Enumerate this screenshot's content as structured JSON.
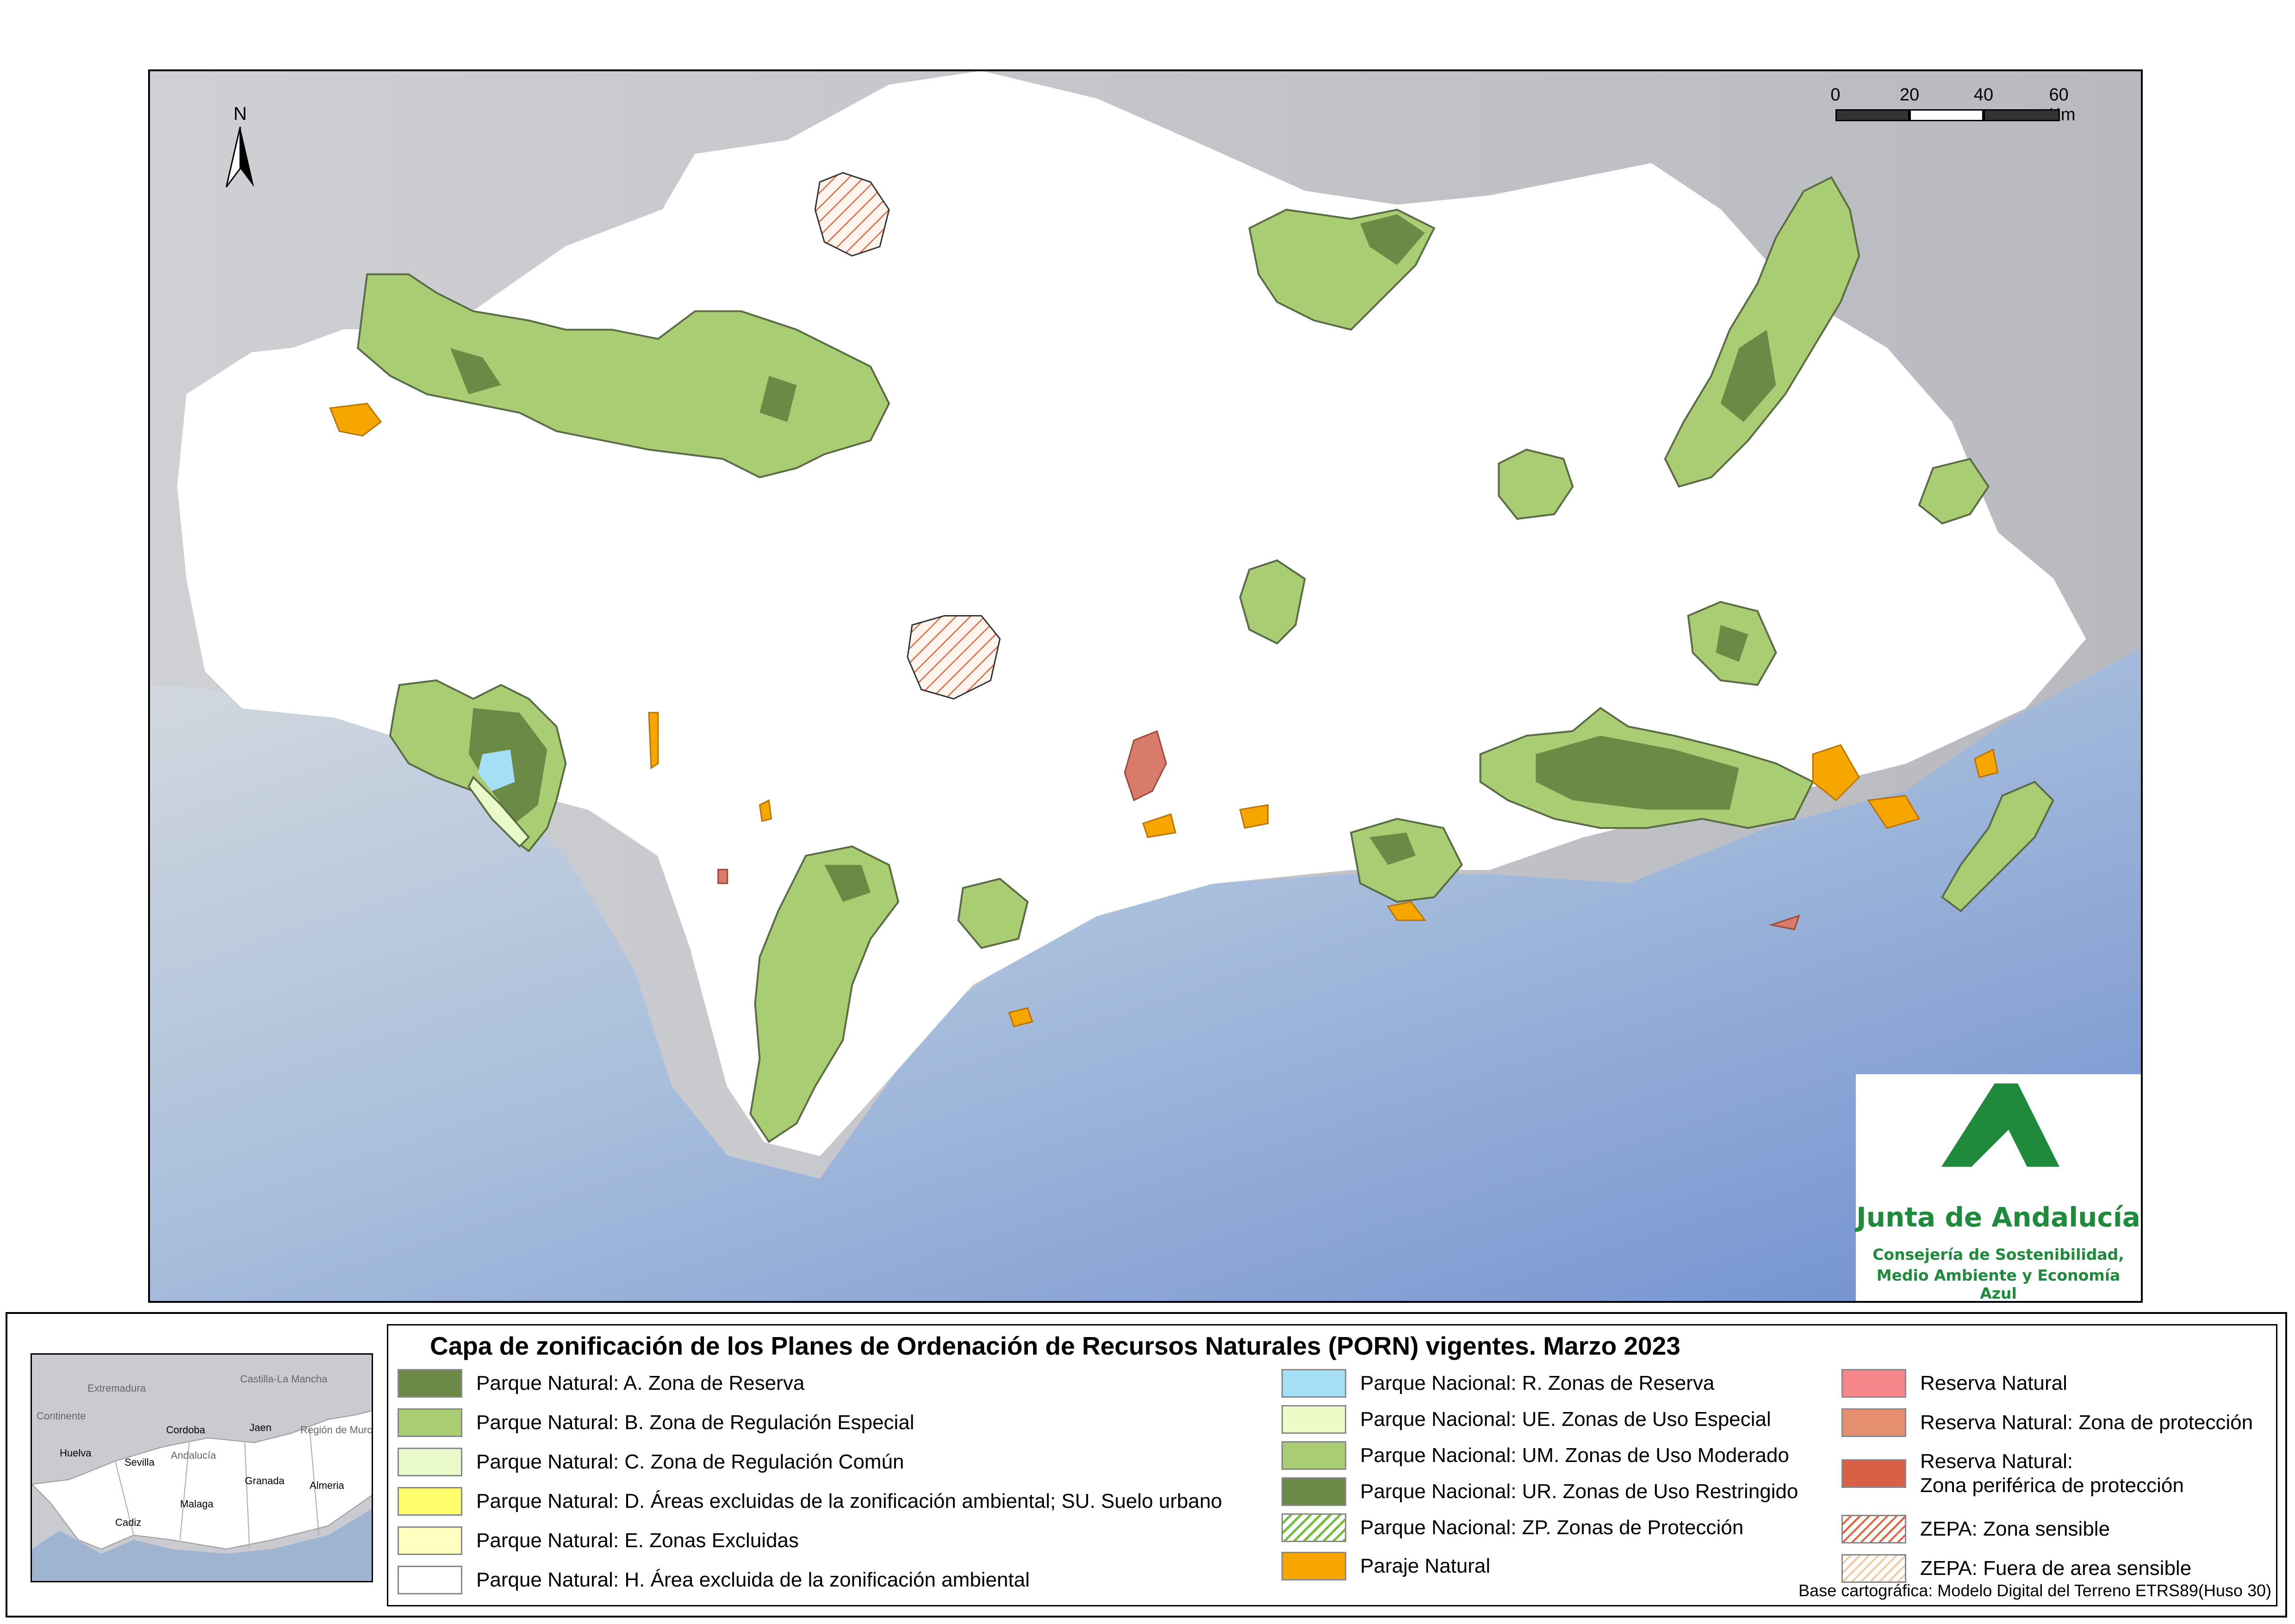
{
  "scale_bar": {
    "ticks": [
      "0",
      "20",
      "40",
      "60 Km"
    ]
  },
  "north_arrow": {
    "label": "N"
  },
  "logo": {
    "title": "Junta de Andalucía",
    "subtitle_line1": "Consejería de Sostenibilidad,",
    "subtitle_line2": "Medio Ambiente y Economía Azul",
    "color": "#1f8a3b"
  },
  "legend": {
    "title": "Capa de zonificación de los Planes de Ordenación de Recursos Naturales (PORN) vigentes. Marzo 2023",
    "column1": [
      {
        "label": "Parque Natural: A. Zona de Reserva",
        "color": "#6b8a46",
        "pattern": "solid"
      },
      {
        "label": "Parque Natural: B. Zona de Regulación Especial",
        "color": "#a9cd72",
        "pattern": "solid"
      },
      {
        "label": "Parque Natural: C. Zona de Regulación Común",
        "color": "#eaf9c9",
        "pattern": "solid"
      },
      {
        "label": "Parque Natural: D. Áreas excluidas de la zonificación ambiental; SU. Suelo urbano",
        "color": "#ffff6e",
        "pattern": "solid"
      },
      {
        "label": "Parque Natural: E. Zonas Excluidas",
        "color": "#ffffc0",
        "pattern": "solid"
      },
      {
        "label": "Parque Natural: H. Área excluida de la zonificación ambiental",
        "color": "#ffffff",
        "pattern": "solid"
      }
    ],
    "column2": [
      {
        "label": "Parque Nacional: R. Zonas de Reserva",
        "color": "#a5dff5",
        "pattern": "solid"
      },
      {
        "label": "Parque Nacional: UE. Zonas de Uso Especial",
        "color": "#ecfac8",
        "pattern": "solid"
      },
      {
        "label": "Parque Nacional: UM. Zonas de Uso Moderado",
        "color": "#a9cd72",
        "pattern": "solid"
      },
      {
        "label": "Parque Nacional: UR. Zonas de Uso Restringido",
        "color": "#6b8a46",
        "pattern": "solid"
      },
      {
        "label": "Parque Nacional: ZP. Zonas de Protección",
        "color": "#6fbf3a",
        "pattern": "hatch"
      },
      {
        "label": "Paraje Natural",
        "color": "#f7a600",
        "pattern": "solid"
      }
    ],
    "column3": [
      {
        "label": "Reserva Natural",
        "color": "#f7878a",
        "pattern": "solid"
      },
      {
        "label": "Reserva Natural: Zona de protección",
        "color": "#e58f6e",
        "pattern": "solid"
      },
      {
        "label": "Reserva Natural:",
        "label2": "Zona periférica de protección",
        "color": "#d95f45",
        "pattern": "solid"
      },
      {
        "label": "ZEPA: Zona sensible",
        "color": "#e8603a",
        "pattern": "hatch"
      },
      {
        "label": "ZEPA: Fuera de area sensible",
        "color": "#f2c9a0",
        "pattern": "hatch"
      }
    ],
    "base_note": "Base cartográfica: Modelo Digital del Terreno ETRS89(Huso 30)"
  },
  "minimap": {
    "labels": [
      "Extremadura",
      "Castilla-La Mancha",
      "Continente",
      "Huelva",
      "Cordoba",
      "Jaen",
      "Región de Murcia",
      "Andalucía",
      "Sevilla",
      "Granada",
      "Almeria",
      "Malaga",
      "Cadiz"
    ]
  },
  "colors": {
    "land_outside": "#c4c6cb",
    "andalucia": "#ffffff",
    "sea": "#8aa9d6",
    "reserve_dark": "#6b8a46",
    "regulation": "#a9cd72",
    "paraje": "#f7a600",
    "reserva_natural": "#d97b6a"
  }
}
